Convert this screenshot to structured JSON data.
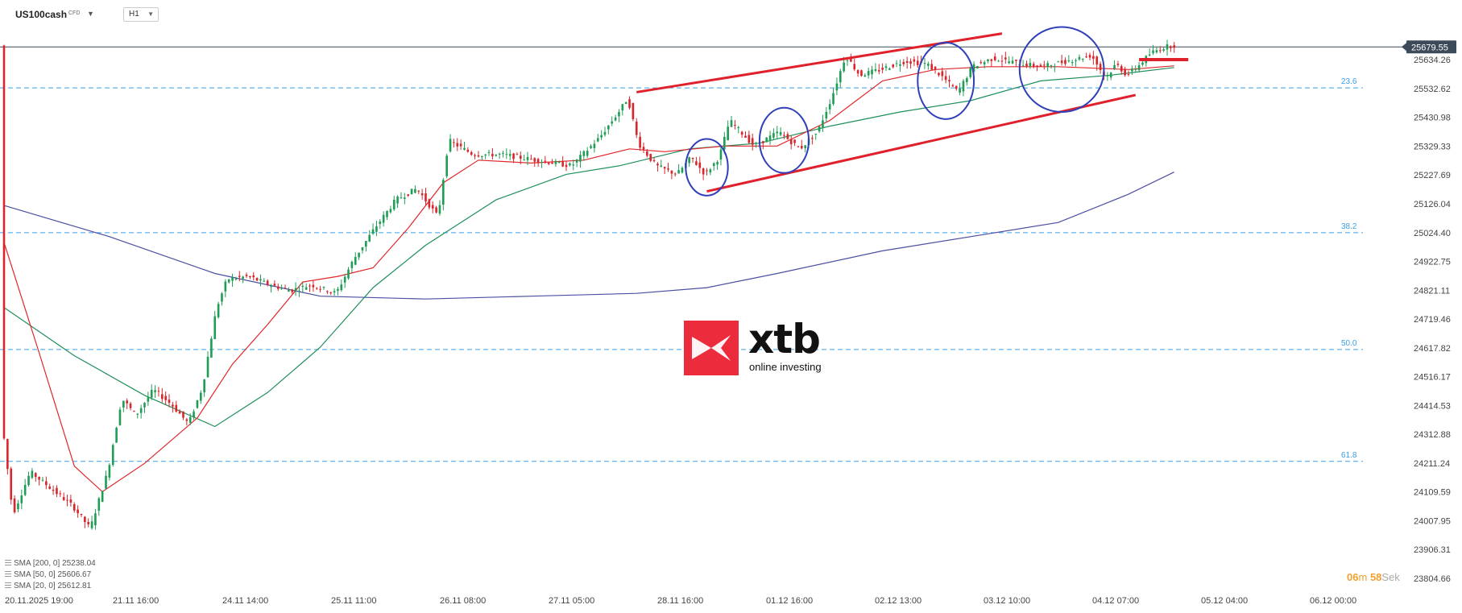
{
  "header": {
    "symbol": "US100cash",
    "badge": "CFD",
    "timeframe": "H1"
  },
  "legend": [
    {
      "label": "SMA [200, 0] 25238.04",
      "color": "#4a4fa0"
    },
    {
      "label": "SMA [50, 0] 25606.67",
      "color": "#1e8f5a"
    },
    {
      "label": "SMA [20, 0] 25612.81",
      "color": "#e0262a"
    }
  ],
  "timer": {
    "minutes": "06",
    "m": "m",
    "seconds": "58",
    "sek": "Sek"
  },
  "logo": {
    "name": "xtb",
    "tagline": "online investing"
  },
  "chart_data": {
    "type": "line",
    "title": "",
    "xlabel": "",
    "ylabel": "",
    "ylim": [
      23770,
      25760
    ],
    "x_ticks": [
      "20.11.2025  19:00",
      "21.11  16:00",
      "24.11  14:00",
      "25.11  11:00",
      "26.11  08:00",
      "27.11  05:00",
      "28.11  16:00",
      "01.12  16:00",
      "02.12  13:00",
      "03.12  10:00",
      "04.12  07:00",
      "05.12  04:00",
      "06.12  00:00"
    ],
    "y_ticks": [
      "25634.26",
      "25532.62",
      "25430.98",
      "25329.33",
      "25227.69",
      "25126.04",
      "25024.40",
      "24922.75",
      "24821.11",
      "24719.46",
      "24617.82",
      "24516.17",
      "24414.53",
      "24312.88",
      "24211.24",
      "24109.59",
      "24007.95",
      "23906.31",
      "23804.66"
    ],
    "last_price": "25679.55",
    "fib_levels": [
      {
        "label": "23.6",
        "value": 25535
      },
      {
        "label": "38.2",
        "value": 25024
      },
      {
        "label": "50.0",
        "value": 24612
      },
      {
        "label": "61.8",
        "value": 24217
      }
    ],
    "price_path": [
      [
        0,
        24350
      ],
      [
        3,
        24030
      ],
      [
        8,
        24180
      ],
      [
        14,
        24120
      ],
      [
        20,
        24060
      ],
      [
        25,
        23980
      ],
      [
        30,
        24180
      ],
      [
        34,
        24440
      ],
      [
        38,
        24380
      ],
      [
        43,
        24470
      ],
      [
        48,
        24420
      ],
      [
        53,
        24350
      ],
      [
        57,
        24480
      ],
      [
        61,
        24760
      ],
      [
        64,
        24860
      ],
      [
        70,
        24870
      ],
      [
        76,
        24840
      ],
      [
        82,
        24820
      ],
      [
        88,
        24840
      ],
      [
        95,
        24810
      ],
      [
        100,
        24930
      ],
      [
        106,
        25040
      ],
      [
        112,
        25140
      ],
      [
        118,
        25180
      ],
      [
        124,
        25080
      ],
      [
        127,
        25350
      ],
      [
        134,
        25300
      ],
      [
        142,
        25300
      ],
      [
        152,
        25280
      ],
      [
        162,
        25260
      ],
      [
        170,
        25360
      ],
      [
        176,
        25460
      ],
      [
        178,
        25500
      ],
      [
        181,
        25340
      ],
      [
        186,
        25260
      ],
      [
        192,
        25230
      ],
      [
        196,
        25290
      ],
      [
        200,
        25230
      ],
      [
        204,
        25290
      ],
      [
        207,
        25420
      ],
      [
        214,
        25330
      ],
      [
        221,
        25380
      ],
      [
        227,
        25320
      ],
      [
        232,
        25380
      ],
      [
        236,
        25500
      ],
      [
        240,
        25650
      ],
      [
        244,
        25580
      ],
      [
        250,
        25600
      ],
      [
        257,
        25630
      ],
      [
        263,
        25620
      ],
      [
        267,
        25580
      ],
      [
        272,
        25520
      ],
      [
        276,
        25610
      ],
      [
        282,
        25640
      ],
      [
        290,
        25620
      ],
      [
        296,
        25610
      ],
      [
        303,
        25630
      ],
      [
        310,
        25650
      ],
      [
        314,
        25570
      ],
      [
        317,
        25620
      ],
      [
        320,
        25580
      ],
      [
        323,
        25610
      ],
      [
        327,
        25660
      ],
      [
        331,
        25680
      ],
      [
        333,
        25685
      ]
    ],
    "series": [
      {
        "name": "SMA [200, 0]",
        "color": "#4a4fa0",
        "values": [
          [
            0,
            25120
          ],
          [
            30,
            25010
          ],
          [
            60,
            24880
          ],
          [
            90,
            24800
          ],
          [
            120,
            24790
          ],
          [
            150,
            24800
          ],
          [
            180,
            24810
          ],
          [
            200,
            24830
          ],
          [
            220,
            24880
          ],
          [
            250,
            24960
          ],
          [
            280,
            25020
          ],
          [
            300,
            25060
          ],
          [
            320,
            25160
          ],
          [
            333,
            25238
          ]
        ]
      },
      {
        "name": "SMA [50, 0]",
        "color": "#1e8f5a",
        "values": [
          [
            0,
            24760
          ],
          [
            20,
            24590
          ],
          [
            40,
            24450
          ],
          [
            60,
            24340
          ],
          [
            75,
            24460
          ],
          [
            90,
            24620
          ],
          [
            105,
            24830
          ],
          [
            120,
            24980
          ],
          [
            140,
            25140
          ],
          [
            160,
            25230
          ],
          [
            175,
            25260
          ],
          [
            195,
            25320
          ],
          [
            215,
            25340
          ],
          [
            235,
            25400
          ],
          [
            255,
            25450
          ],
          [
            275,
            25490
          ],
          [
            295,
            25560
          ],
          [
            315,
            25580
          ],
          [
            333,
            25607
          ]
        ]
      },
      {
        "name": "SMA [20, 0]",
        "color": "#e0262a",
        "values": [
          [
            0,
            24990
          ],
          [
            10,
            24600
          ],
          [
            20,
            24200
          ],
          [
            28,
            24110
          ],
          [
            40,
            24210
          ],
          [
            55,
            24370
          ],
          [
            65,
            24560
          ],
          [
            75,
            24700
          ],
          [
            85,
            24850
          ],
          [
            95,
            24870
          ],
          [
            105,
            24900
          ],
          [
            115,
            25040
          ],
          [
            125,
            25200
          ],
          [
            135,
            25280
          ],
          [
            150,
            25270
          ],
          [
            165,
            25280
          ],
          [
            178,
            25320
          ],
          [
            188,
            25310
          ],
          [
            205,
            25330
          ],
          [
            220,
            25330
          ],
          [
            235,
            25420
          ],
          [
            250,
            25560
          ],
          [
            265,
            25600
          ],
          [
            280,
            25610
          ],
          [
            300,
            25610
          ],
          [
            320,
            25600
          ],
          [
            333,
            25613
          ]
        ]
      }
    ],
    "channel": [
      {
        "x1": 180,
        "y1": 25520,
        "x2": 284,
        "y2": 25727
      },
      {
        "x1": 200,
        "y1": 25170,
        "x2": 322,
        "y2": 25510
      }
    ],
    "circles": [
      {
        "x": 200,
        "y": 25255,
        "rx": 6,
        "ry": 100
      },
      {
        "x": 222,
        "y": 25350,
        "rx": 7,
        "ry": 115
      },
      {
        "x": 268,
        "y": 25560,
        "rx": 8,
        "ry": 135
      },
      {
        "x": 301,
        "y": 25600,
        "rx": 12,
        "ry": 150
      }
    ],
    "target": {
      "x1": 323,
      "x2": 337,
      "y": 25635
    }
  }
}
